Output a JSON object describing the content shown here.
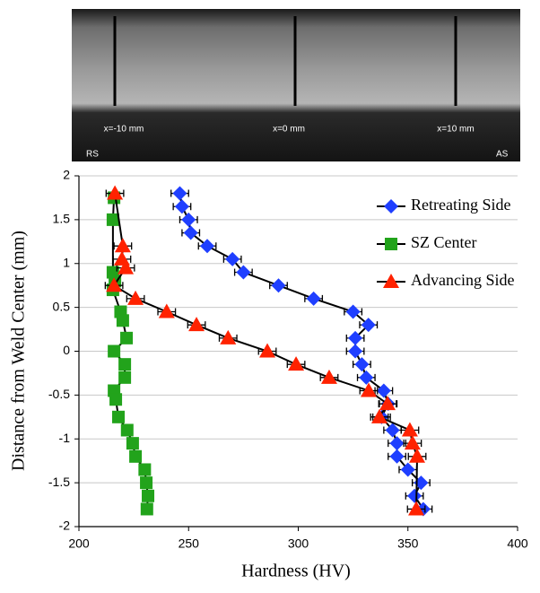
{
  "micrograph": {
    "position_labels": [
      "x=-10 mm",
      "x=0 mm",
      "x=10 mm"
    ],
    "left_label": "RS",
    "right_label": "AS"
  },
  "chart_data": {
    "type": "scatter",
    "x_label": "Hardness (HV)",
    "y_label": "Distance from Weld Center (mm)",
    "xlim": [
      200,
      400
    ],
    "xticks": [
      200,
      250,
      300,
      350,
      400
    ],
    "ylim": [
      -2,
      2
    ],
    "yticks": [
      -2,
      -1.5,
      -1,
      -0.5,
      0,
      0.5,
      1,
      1.5,
      2
    ],
    "grid": true,
    "legend": "upper right",
    "line_color": "#000000",
    "series": [
      {
        "name": "Retreating Side",
        "color": "#1f3fff",
        "marker": "diamond",
        "xerr": 4,
        "x": [
          246,
          247,
          250,
          251,
          258.5,
          270,
          275,
          291,
          307,
          325,
          332,
          326,
          326,
          329,
          331,
          339,
          341,
          338,
          343,
          345,
          345,
          350,
          356,
          353,
          357
        ],
        "y": [
          1.8,
          1.65,
          1.5,
          1.35,
          1.2,
          1.05,
          0.9,
          0.75,
          0.6,
          0.45,
          0.3,
          0.15,
          0,
          -0.15,
          -0.3,
          -0.45,
          -0.6,
          -0.75,
          -0.9,
          -1.05,
          -1.2,
          -1.35,
          -1.5,
          -1.65,
          -1.8
        ]
      },
      {
        "name": "SZ Center",
        "color": "#22a31b",
        "marker": "square",
        "xerr": 2,
        "x": [
          216,
          215.5,
          215.5,
          216.4,
          215.5,
          219,
          220,
          221.7,
          216,
          220.9,
          220.9,
          216,
          216.8,
          218,
          222,
          224.5,
          225.8,
          230,
          230.7,
          231.5,
          231
        ],
        "y": [
          1.75,
          1.5,
          0.9,
          0.8,
          0.7,
          0.45,
          0.35,
          0.15,
          0,
          -0.15,
          -0.3,
          -0.45,
          -0.55,
          -0.75,
          -0.9,
          -1.05,
          -1.2,
          -1.35,
          -1.5,
          -1.65,
          -1.8
        ]
      },
      {
        "name": "Advancing Side",
        "color": "#ff2200",
        "marker": "triangle",
        "xerr": 4,
        "x": [
          216.4,
          220,
          219.6,
          221.3,
          216,
          225.8,
          240,
          253.6,
          268,
          285.9,
          299,
          314.1,
          332.1,
          340.7,
          337,
          350.9,
          352.1,
          354.2,
          353.8
        ],
        "y": [
          1.8,
          1.2,
          1.05,
          0.95,
          0.75,
          0.6,
          0.45,
          0.3,
          0.15,
          0,
          -0.15,
          -0.3,
          -0.45,
          -0.6,
          -0.75,
          -0.9,
          -1.05,
          -1.2,
          -1.8
        ]
      }
    ]
  }
}
